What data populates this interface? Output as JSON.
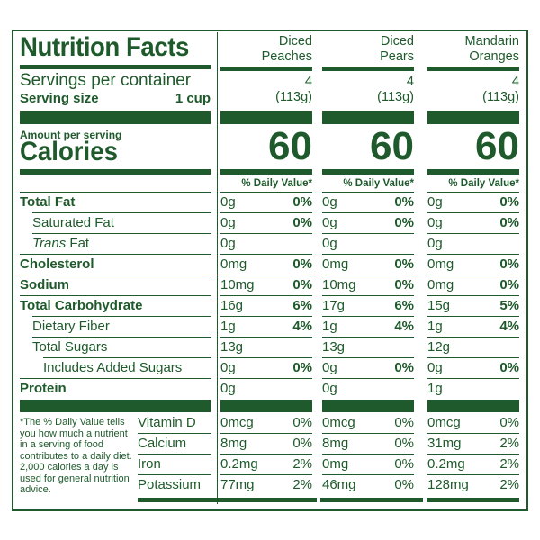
{
  "title": "Nutrition Facts",
  "servings_label": "Servings per container",
  "serving_size_label": "Serving size",
  "serving_size_value": "1 cup",
  "amount_per_serving": "Amount per serving",
  "calories_label": "Calories",
  "daily_value_header": "% Daily Value*",
  "columns": [
    {
      "name_line1": "Diced",
      "name_line2": "Peaches",
      "servings": "4",
      "grams": "(113g)",
      "calories": "60"
    },
    {
      "name_line1": "Diced",
      "name_line2": "Pears",
      "servings": "4",
      "grams": "(113g)",
      "calories": "60"
    },
    {
      "name_line1": "Mandarin",
      "name_line2": "Oranges",
      "servings": "4",
      "grams": "(113g)",
      "calories": "60"
    }
  ],
  "nutrients": [
    {
      "label": "Total Fat",
      "values": [
        [
          "0g",
          "0%"
        ],
        [
          "0g",
          "0%"
        ],
        [
          "0g",
          "0%"
        ]
      ]
    },
    {
      "label": "Saturated Fat",
      "values": [
        [
          "0g",
          "0%"
        ],
        [
          "0g",
          "0%"
        ],
        [
          "0g",
          "0%"
        ]
      ]
    },
    {
      "label": "Trans",
      "label_suffix": " Fat",
      "values": [
        [
          "0g",
          ""
        ],
        [
          "0g",
          ""
        ],
        [
          "0g",
          ""
        ]
      ]
    },
    {
      "label": "Cholesterol",
      "values": [
        [
          "0mg",
          "0%"
        ],
        [
          "0mg",
          "0%"
        ],
        [
          "0mg",
          "0%"
        ]
      ]
    },
    {
      "label": "Sodium",
      "values": [
        [
          "10mg",
          "0%"
        ],
        [
          "10mg",
          "0%"
        ],
        [
          "0mg",
          "0%"
        ]
      ]
    },
    {
      "label": "Total Carbohydrate",
      "values": [
        [
          "16g",
          "6%"
        ],
        [
          "17g",
          "6%"
        ],
        [
          "15g",
          "5%"
        ]
      ]
    },
    {
      "label": "Dietary Fiber",
      "values": [
        [
          "1g",
          "4%"
        ],
        [
          "1g",
          "4%"
        ],
        [
          "1g",
          "4%"
        ]
      ]
    },
    {
      "label": "Total Sugars",
      "values": [
        [
          "13g",
          ""
        ],
        [
          "13g",
          ""
        ],
        [
          "12g",
          ""
        ]
      ]
    },
    {
      "label": "Includes Added Sugars",
      "values": [
        [
          "0g",
          "0%"
        ],
        [
          "0g",
          "0%"
        ],
        [
          "0g",
          "0%"
        ]
      ]
    },
    {
      "label": "Protein",
      "values": [
        [
          "0g",
          ""
        ],
        [
          "0g",
          ""
        ],
        [
          "1g",
          ""
        ]
      ]
    }
  ],
  "vitamins": [
    {
      "label": "Vitamin D",
      "values": [
        [
          "0mcg",
          "0%"
        ],
        [
          "0mcg",
          "0%"
        ],
        [
          "0mcg",
          "0%"
        ]
      ]
    },
    {
      "label": "Calcium",
      "values": [
        [
          "8mg",
          "0%"
        ],
        [
          "8mg",
          "0%"
        ],
        [
          "31mg",
          "2%"
        ]
      ]
    },
    {
      "label": "Iron",
      "values": [
        [
          "0.2mg",
          "2%"
        ],
        [
          "0mg",
          "0%"
        ],
        [
          "0.2mg",
          "2%"
        ]
      ]
    },
    {
      "label": "Potassium",
      "values": [
        [
          "77mg",
          "2%"
        ],
        [
          "46mg",
          "0%"
        ],
        [
          "128mg",
          "2%"
        ]
      ]
    }
  ],
  "footnote": "*The % Daily Value tells you how much a nutrient in a serving of food contributes to a daily diet. 2,000 calories a day is used for general nutrition advice.",
  "colors": {
    "ink": "#1e5a2b",
    "background": "#ffffff"
  }
}
